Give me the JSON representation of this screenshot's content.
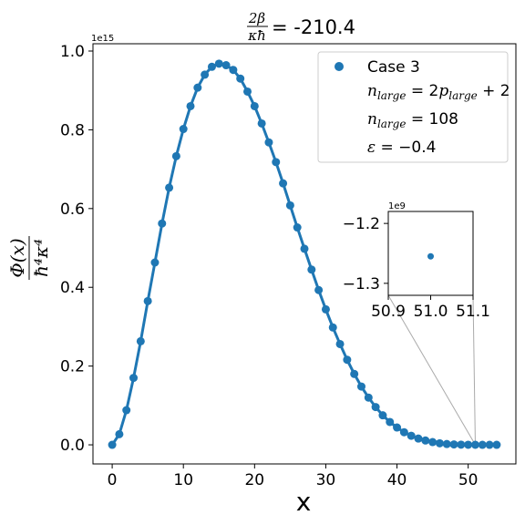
{
  "chart_data": {
    "type": "line",
    "title": "2β/κħ = -210.4",
    "title_parts": {
      "num": "2β",
      "den": "κħ",
      "value": "= -210.4"
    },
    "xlabel": "x",
    "ylabel": "Φ(x) / ħ⁴κ⁴",
    "ylabel_parts": {
      "num": "Φ(x)",
      "den": "ħ⁴κ⁴"
    },
    "y_offset_label": "1e15",
    "xlim": [
      -2.7,
      56.7
    ],
    "ylim": [
      -0.0485,
      1.0185
    ],
    "x_ticks": [
      0,
      10,
      20,
      30,
      40,
      50
    ],
    "y_ticks": [
      0.0,
      0.2,
      0.4,
      0.6,
      0.8,
      1.0
    ],
    "y_tick_labels": [
      "0.0",
      "0.2",
      "0.4",
      "0.6",
      "0.8",
      "1.0"
    ],
    "grid": false,
    "legend_position": "top-right",
    "color": "#1f77b4",
    "series": [
      {
        "name": "Case 3",
        "x": [
          0,
          1,
          2,
          3,
          4,
          5,
          6,
          7,
          8,
          9,
          10,
          11,
          12,
          13,
          14,
          15,
          16,
          17,
          18,
          19,
          20,
          21,
          22,
          23,
          24,
          25,
          26,
          27,
          28,
          29,
          30,
          31,
          32,
          33,
          34,
          35,
          36,
          37,
          38,
          39,
          40,
          41,
          42,
          43,
          44,
          45,
          46,
          47,
          48,
          49,
          50,
          51,
          52,
          53,
          54
        ],
        "y": [
          0.0,
          0.027,
          0.088,
          0.17,
          0.263,
          0.365,
          0.463,
          0.562,
          0.653,
          0.733,
          0.802,
          0.86,
          0.907,
          0.94,
          0.96,
          0.968,
          0.964,
          0.952,
          0.93,
          0.897,
          0.86,
          0.816,
          0.768,
          0.718,
          0.664,
          0.608,
          0.552,
          0.498,
          0.445,
          0.393,
          0.344,
          0.298,
          0.256,
          0.216,
          0.18,
          0.148,
          0.12,
          0.096,
          0.075,
          0.058,
          0.044,
          0.032,
          0.023,
          0.016,
          0.011,
          0.007,
          0.004,
          0.002,
          0.001,
          0.0005,
          0.0002,
          0.0001,
          0.0,
          0.0,
          0.0
        ]
      }
    ],
    "legend": {
      "entries": [
        "Case 3"
      ],
      "notes": [
        "n_large = 2p_large + 2",
        "n_large = 108",
        "ε = -0.4"
      ]
    },
    "inset": {
      "xlim": [
        50.9,
        51.1
      ],
      "ylim": [
        -1.32,
        -1.18
      ],
      "x_ticks": [
        50.9,
        51.0,
        51.1
      ],
      "x_tick_labels": [
        "50.9",
        "51.0",
        "51.1"
      ],
      "y_ticks": [
        -1.2,
        -1.3
      ],
      "y_tick_labels": [
        "−1.2",
        "−1.3"
      ],
      "y_offset_label": "1e9",
      "point": {
        "x": 51.0,
        "y": -1.255
      }
    }
  }
}
